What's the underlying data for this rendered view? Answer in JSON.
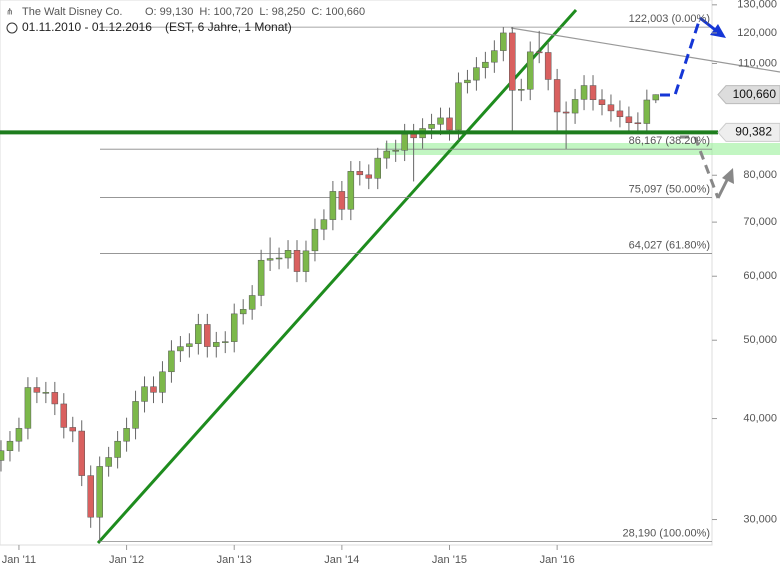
{
  "chart_data": {
    "type": "candlestick",
    "title": "The Walt Disney Co.",
    "subtitle": "O: 99,130  H: 100,720  L: 98,250  C: 100,660",
    "period": "01.11.2010 - 01.12.2016",
    "period_note": "(EST, 6 Jahre, 1 Monat)",
    "categories": [
      null,
      null,
      "Jan '11",
      null,
      null,
      null,
      null,
      null,
      null,
      null,
      null,
      null,
      null,
      null,
      "Jan '12",
      null,
      null,
      null,
      null,
      null,
      null,
      null,
      null,
      null,
      null,
      null,
      "Jan '13",
      null,
      null,
      null,
      null,
      null,
      null,
      null,
      null,
      null,
      null,
      null,
      "Jan '14",
      null,
      null,
      null,
      null,
      null,
      null,
      null,
      null,
      null,
      null,
      null,
      "Jan '15",
      null,
      null,
      null,
      null,
      null,
      null,
      null,
      null,
      null,
      null,
      null,
      "Jan '16",
      null,
      null,
      null,
      null,
      null,
      null,
      null,
      null,
      null,
      null,
      null
    ],
    "open": [
      35.5,
      36.5,
      37.5,
      38.9,
      43.7,
      43.1,
      43.1,
      41.7,
      39.0,
      38.6,
      34.0,
      30.2,
      34.9,
      35.8,
      37.5,
      38.9,
      42.0,
      43.8,
      43.1,
      45.7,
      48.5,
      49.1,
      49.5,
      52.3,
      49.1,
      49.7,
      49.8,
      53.9,
      54.6,
      56.8,
      62.8,
      63.1,
      63.2,
      64.6,
      60.8,
      64.5,
      68.6,
      70.5,
      76.4,
      72.6,
      80.9,
      80.1,
      79.3,
      84.0,
      85.7,
      85.9,
      89.9,
      89.0,
      91.4,
      92.5,
      94.2,
      91.0,
      104.1,
      104.9,
      108.7,
      110.4,
      114.1,
      120.0,
      101.9,
      102.2,
      113.7,
      113.5,
      105.1,
      95.8,
      95.5,
      99.3,
      103.3,
      99.2,
      97.8,
      96.1,
      94.5,
      92.9,
      92.7,
      99.13
    ],
    "high": [
      37.6,
      38.6,
      40.1,
      45.0,
      45.0,
      44.4,
      44.4,
      43.0,
      40.2,
      39.8,
      35.0,
      35.9,
      36.9,
      38.6,
      40.1,
      43.3,
      45.1,
      45.1,
      47.1,
      50.0,
      50.6,
      51.0,
      53.9,
      53.9,
      51.2,
      51.3,
      55.5,
      56.2,
      58.5,
      64.7,
      67.0,
      65.1,
      66.5,
      66.5,
      66.4,
      70.7,
      72.6,
      78.7,
      78.7,
      83.3,
      83.3,
      82.5,
      86.5,
      88.3,
      88.5,
      92.6,
      92.6,
      94.1,
      95.3,
      97.0,
      97.0,
      107.2,
      108.0,
      112.0,
      113.7,
      117.5,
      122.0,
      122.0,
      105.3,
      117.1,
      120.7,
      116.9,
      108.3,
      98.7,
      102.3,
      106.4,
      106.4,
      102.2,
      100.7,
      99.0,
      97.3,
      95.7,
      102.1,
      100.72
    ],
    "low": [
      34.4,
      35.4,
      36.4,
      37.7,
      41.8,
      41.8,
      40.4,
      37.8,
      37.4,
      33.0,
      29.3,
      28.2,
      33.9,
      34.7,
      36.4,
      37.7,
      40.7,
      41.8,
      41.8,
      44.3,
      47.0,
      47.6,
      48.0,
      47.6,
      47.6,
      48.2,
      48.3,
      52.3,
      53.0,
      55.1,
      60.9,
      61.2,
      61.3,
      59.0,
      59.0,
      62.6,
      66.5,
      68.4,
      70.4,
      70.4,
      77.7,
      76.9,
      76.9,
      81.5,
      83.1,
      83.3,
      78.6,
      86.3,
      88.7,
      89.7,
      88.3,
      88.3,
      101.0,
      101.8,
      105.4,
      107.1,
      110.7,
      90.0,
      98.8,
      99.1,
      110.1,
      101.9,
      90.2,
      86.25,
      92.6,
      96.3,
      96.2,
      94.9,
      93.2,
      91.7,
      90.1,
      89.9,
      89.9,
      98.25
    ],
    "close": [
      36.5,
      37.5,
      38.9,
      43.7,
      43.1,
      43.1,
      41.7,
      39.0,
      38.6,
      34.0,
      30.2,
      34.9,
      35.8,
      37.5,
      38.9,
      42.0,
      43.8,
      43.1,
      45.7,
      48.5,
      49.1,
      49.5,
      52.3,
      49.1,
      49.7,
      49.8,
      53.9,
      54.6,
      56.8,
      62.8,
      63.1,
      63.2,
      64.6,
      60.8,
      64.5,
      68.6,
      70.5,
      76.4,
      72.6,
      80.9,
      80.1,
      79.3,
      84.0,
      85.7,
      85.9,
      89.9,
      89.0,
      91.4,
      92.5,
      94.2,
      91.0,
      104.1,
      104.9,
      108.7,
      110.4,
      114.1,
      120.0,
      101.9,
      102.2,
      113.7,
      113.5,
      105.1,
      95.8,
      95.5,
      99.3,
      103.3,
      99.2,
      97.8,
      96.1,
      94.5,
      92.9,
      92.7,
      99.13,
      100.66
    ],
    "up_color": "#7cb84a",
    "down_color": "#d9605f",
    "log_scale": true,
    "ylim": [
      27.9,
      131.8
    ],
    "yticks": [
      {
        "value": 30,
        "label": "30,000"
      },
      {
        "value": 40,
        "label": "40,000"
      },
      {
        "value": 50,
        "label": "50,000"
      },
      {
        "value": 60,
        "label": "60,000"
      },
      {
        "value": 70,
        "label": "70,000"
      },
      {
        "value": 80,
        "label": "80,000"
      },
      {
        "value": 110,
        "label": "110,000"
      },
      {
        "value": 120,
        "label": "120,000"
      },
      {
        "value": 130,
        "label": "130,000"
      }
    ],
    "fib_levels": [
      {
        "value": 122.003,
        "label": "122,003 (0.00%)"
      },
      {
        "value": 86.167,
        "label": "86,167 (38.20%)"
      },
      {
        "value": 75.097,
        "label": "75,097 (50.00%)"
      },
      {
        "value": 64.027,
        "label": "64,027 (61.80%)"
      },
      {
        "value": 28.19,
        "label": "28,190 (100.00%)"
      }
    ],
    "support": {
      "value": 90.382,
      "label": "90,382",
      "color": "#1e7d1e"
    },
    "last_price": {
      "value": 100.66,
      "label": "100,660"
    }
  }
}
